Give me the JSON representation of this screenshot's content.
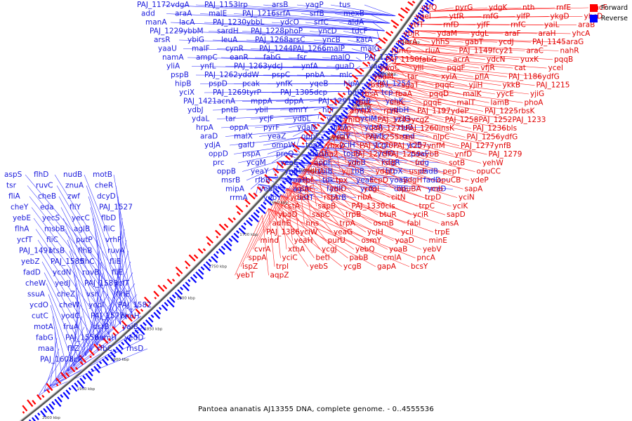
{
  "title": "Pantoea ananatis AJ13355 DNA, complete genome. - 0..4555536",
  "legend": [
    {
      "label": "Forward",
      "color": "#ff0000"
    },
    {
      "label": "Reverse",
      "color": "#0000ff"
    }
  ],
  "ticks": [
    "1400 kbp",
    "1450 kbp",
    "1500 kbp",
    "1550 kbp",
    "1600 kbp",
    "1650 kbp",
    "1700 kbp",
    "1750 kbp",
    "1800 kbp",
    "1850 kbp",
    "1900 kbp",
    "1950 kbp",
    "2000 kbp"
  ],
  "forward_labels": [
    "ytfQ",
    "pyrG",
    "ydgK",
    "nth",
    "rnfE",
    "yhcF",
    "ygel",
    "ytfR",
    "rnfG",
    "ylfP",
    "ykgD",
    "yhcD",
    "ytfT",
    "rnfD",
    "yjfF",
    "rnfC",
    "yaiL",
    "araB",
    "ybjR",
    "ydaM",
    "ydgL",
    "araF",
    "araH",
    "yhcA",
    "marA",
    "yhhS",
    "gabT",
    "ycdJ",
    "PAJ_1145",
    "araG",
    "fumC",
    "rluA",
    "PAJ_1149",
    "fcy21",
    "araC",
    "nahR",
    "PAJ_1150",
    "fabG",
    "acrA",
    "ydcN",
    "yuxK",
    "pqqB",
    "ywoC",
    "ylil",
    "pqqF",
    "vfjR",
    "cat",
    "ycel",
    "yeaM",
    "tar",
    "xylA",
    "pflA",
    "PAJ_1186",
    "ydfG",
    "rbsB",
    "sgaT",
    "pqqC",
    "yjiH",
    "ykkB",
    "PAJ_1215",
    "rbsA",
    "fbaA",
    "pqqD",
    "malK",
    "yycE",
    "yjiG",
    "rbsC",
    "ulaC",
    "pqqE",
    "malT",
    "lamB",
    "phoA",
    "amhX",
    "rpiR",
    "PAJ_1197",
    "ydeP",
    "PAJ_1225",
    "rbsK",
    "yhiD",
    "PAJ_1243",
    "ycgZ",
    "PAJ_1258",
    "PAJ_1252",
    "PAJ_1233",
    "kup",
    "PAJ_1271",
    "PAJ_1260",
    "insK",
    "PAJ_1236",
    "bls",
    "yeaT",
    "PAJ_1255",
    "eanl",
    "nlpC",
    "PAJ_1256",
    "ydfG",
    "yhxD",
    "PAJ_1270",
    "PAJ_1257",
    "ynfM",
    "PAJ_1277",
    "ynfB",
    "aba2",
    "PAJ_1278",
    "PAJ_1259",
    "cybB",
    "ynfD",
    "PAJ_1279",
    "asr",
    "ydcl",
    "rstB",
    "fnr",
    "sotB",
    "yehW",
    "ldhA",
    "yjjL",
    "ydgD",
    "uspE",
    "pepT",
    "opuCC",
    "spf",
    "tpx",
    "acpD",
    "ydgH",
    "opuCB",
    "ydeP",
    "pspF",
    "yhiD",
    "ydgI",
    "opuBA",
    "rnb",
    "sapA",
    "ydaO",
    "rstA",
    "ribA",
    "citN",
    "trpD",
    "yciN",
    "cstA",
    "sapB",
    "PAJ_1330",
    "cls",
    "trpC",
    "yciK",
    "ybdD",
    "sapC",
    "trpB",
    "btuR",
    "yciR",
    "sapD",
    "adhE",
    "hns",
    "trpA",
    "osmB",
    "fabl",
    "ansA",
    "PAJ_1386",
    "yciW",
    "yeaG",
    "ycjH",
    "ycil",
    "trpE",
    "mind",
    "yeaH",
    "purU",
    "osmY",
    "yoaD",
    "minE",
    "cvrA",
    "xthA",
    "ycgJ",
    "yebQ",
    "yoaB",
    "yebV",
    "sppA",
    "yciC",
    "betl",
    "pabB",
    "cmlA",
    "pncA",
    "ispZ",
    "trpl",
    "yebS",
    "ycgB",
    "gapA",
    "bcsY",
    "yebT",
    "aqpZ"
  ],
  "reverse_labels": [
    "PAJ_1172",
    "vdgA",
    "PAJ_1153",
    "lrp",
    "arsB",
    "yagP",
    "tus",
    "add",
    "araA",
    "malE",
    "PAJ_1216",
    "srfA",
    "srfB",
    "mexB",
    "manA",
    "lacA",
    "PAJ_1230",
    "ybbL",
    "ydcO",
    "srfC",
    "aldA",
    "PAJ_1229",
    "ybbM",
    "sardH",
    "PAJ_1228",
    "phoP",
    "yncD",
    "tdcF",
    "arsR",
    "ybiG",
    "leuA",
    "PAJ_1268",
    "arsC",
    "yncB",
    "katA",
    "yaaU",
    "malF",
    "cynR",
    "PAJ_1244",
    "PAJ_1266",
    "malP",
    "malG",
    "namA",
    "ampC",
    "eanR",
    "fabG",
    "fsr",
    "malQ",
    "PAJ_1275",
    "yliA",
    "ynfL",
    "PAJ_1263",
    "ydcJ",
    "ynfA",
    "guaD",
    "yagG",
    "pspB",
    "PAJ_1262",
    "yddW",
    "pspC",
    "pnbA",
    "mlc",
    "xdh",
    "hipB",
    "pspD",
    "pcak",
    "ynfK",
    "yqeB",
    "hipA",
    "PAJ_1254",
    "yciX",
    "PAJ_1269",
    "tyrP",
    "PAJ_1305",
    "dcp",
    "bglX",
    "tcp",
    "PAJ_1421",
    "acnA",
    "mppA",
    "dppA",
    "PAJ_1291",
    "pgpB",
    "ychK",
    "ydbJ",
    "pntB",
    "ybil",
    "emrY",
    "hnr",
    "yciS",
    "ydbH",
    "ydaL",
    "tar",
    "ycjF",
    "ydbL",
    "ychE",
    "yciM",
    "ycjG",
    "hrpA",
    "oppA",
    "pyrF",
    "ydaN",
    "pntA",
    "yoaA",
    "rluB",
    "araD",
    "malX",
    "yeaZ",
    "oppC",
    "ycjV",
    "vwfk",
    "rnd",
    "ydjA",
    "galU",
    "ompW",
    "topA",
    "yciH",
    "ycgL",
    "yciB",
    "oppD",
    "pspA",
    "proQ",
    "dadA",
    "topB",
    "ycfO",
    "paaF",
    "prc",
    "ycgM",
    "yeaE",
    "oppF",
    "sohB",
    "kdgR",
    "udg",
    "oppB",
    "yeaY",
    "ynjH",
    "tolB",
    "tbB",
    "htpX",
    "dadB",
    "msrB",
    "rfbB",
    "yoaH",
    "tdk",
    "yeaE",
    "yoaB",
    "fadD",
    "mipA",
    "yebR",
    "aglA",
    "fadR",
    "ycfO",
    "dltE",
    "ycaD",
    "rrmA",
    "yebY",
    "betT",
    "ptrB"
  ],
  "left_labels": [
    "aspS",
    "flhD",
    "nudB",
    "motB",
    "tsr",
    "ruvC",
    "znuA",
    "cheR",
    "fliA",
    "cheB",
    "zwf",
    "dcyD",
    "cheY",
    "eda",
    "fliY",
    "PAJ_1527",
    "yebE",
    "yecS",
    "yecC",
    "flbD",
    "flhA",
    "msbB",
    "aglB",
    "fliC",
    "ycfT",
    "fliC",
    "putP",
    "vrhP",
    "PAJ_1491",
    "otsB",
    "flhB",
    "ruvA",
    "yebZ",
    "PAJ_1585",
    "flhC",
    "fliE",
    "fadD",
    "ycdN",
    "ruvB",
    "fliE",
    "cheW",
    "yedJ",
    "PAJ_1583",
    "ycfT",
    "ssuA",
    "cheZ",
    "vsr",
    "flhE",
    "ycdO",
    "cheW",
    "yedl",
    "PAJ_1582",
    "cutC",
    "yodC",
    "PAJ_1577",
    "phoH",
    "motA",
    "fruA",
    "dsrB",
    "yaiB",
    "fabG",
    "PAJ_1558",
    "hemH",
    "yedD",
    "maa",
    "fliZ",
    "rfbC",
    "rhsD",
    "PAJ_1608",
    "licR"
  ]
}
